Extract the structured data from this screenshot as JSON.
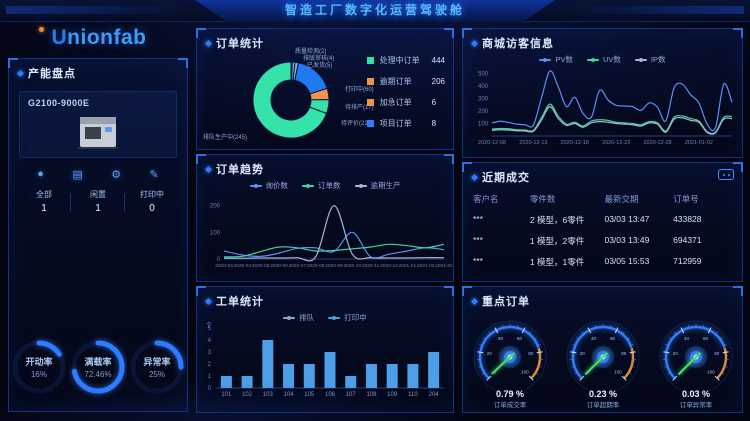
{
  "header": {
    "title": "智造工厂数字化运营驾驶舱"
  },
  "logo": {
    "text_u": "U",
    "text_rest": "nionfab"
  },
  "sidebar": {
    "panel_title": "产能盘点",
    "machine": {
      "name": "G2100-9000E"
    },
    "icons": [
      {
        "name": "status-dot-icon",
        "glyph": "●"
      },
      {
        "name": "printer-icon",
        "glyph": "▤"
      },
      {
        "name": "gear-icon",
        "glyph": "⚙"
      },
      {
        "name": "pen-icon",
        "glyph": "✎"
      }
    ],
    "stats": [
      {
        "label": "全部",
        "value": "1"
      },
      {
        "label": "闲置",
        "value": "1"
      },
      {
        "label": "打印中",
        "value": "0"
      }
    ],
    "ring_gauges": [
      {
        "label": "开动率",
        "value": "16%",
        "pct": 16
      },
      {
        "label": "满载率",
        "value": "72.46%",
        "pct": 72
      },
      {
        "label": "异常率",
        "value": "25%",
        "pct": 25
      }
    ]
  },
  "panels": {
    "orders": {
      "title": "订单统计",
      "legend": [
        {
          "label": "处理中订单",
          "value": "444",
          "color": "#35e2a8"
        },
        {
          "label": "逾期订单",
          "value": "206",
          "color": "#f0944d"
        },
        {
          "label": "加急订单",
          "value": "6",
          "color": "#f0944d"
        },
        {
          "label": "项目订单",
          "value": "8",
          "color": "#2f7bff"
        }
      ]
    },
    "trend": {
      "title": "订单趋势"
    },
    "workorders": {
      "title": "工单统计"
    },
    "visitors": {
      "title": "商城访客信息"
    },
    "deals": {
      "title": "近期成交",
      "headers": [
        "客户名",
        "零件数",
        "最新交期",
        "订单号"
      ],
      "rows": [
        [
          "***",
          "2 模型，6零件",
          "03/03 13:47",
          "433828"
        ],
        [
          "***",
          "1 模型，2零件",
          "03/03 13:49",
          "694371"
        ],
        [
          "***",
          "1 模型，1零件",
          "03/05 15:53",
          "712959"
        ]
      ]
    },
    "key_orders": {
      "title": "重点订单",
      "gauges": [
        {
          "value": "0.79 %",
          "label": "订单成交率",
          "pct": 0.79
        },
        {
          "value": "0.23 %",
          "label": "订单超期率",
          "pct": 0.23
        },
        {
          "value": "0.03 %",
          "label": "订单异常率",
          "pct": 0.03
        }
      ]
    }
  },
  "chart_data": [
    {
      "type": "pie",
      "title": "订单统计",
      "slices": [
        {
          "label": "质量检测(2)",
          "value": 2,
          "color": "#e05a4e"
        },
        {
          "label": "排版审核(4)",
          "value": 4,
          "color": "#49c7e8"
        },
        {
          "label": "已发货(5)",
          "value": 5,
          "color": "#9aa7c7"
        },
        {
          "label": "打印中(60)",
          "value": 60,
          "color": "#1f7af0"
        },
        {
          "label": "待排产(17)",
          "value": 17,
          "color": "#f0944d"
        },
        {
          "label": "待评价(21)",
          "value": 21,
          "color": "#35e2a8"
        },
        {
          "label": "排队生产中(245)",
          "value": 245,
          "color": "#35e2a8"
        }
      ],
      "legend_position": "right"
    },
    {
      "type": "line",
      "title": "订单趋势",
      "x": [
        "2020-03",
        "2020-04",
        "2020-05",
        "2020-06",
        "2020-07",
        "2020-08",
        "2020-09",
        "2020-10",
        "2020-11",
        "2020-12",
        "2021-01",
        "2021-02",
        "2021-03"
      ],
      "series": [
        {
          "name": "询价数",
          "color": "#5b8ff9",
          "values": [
            30,
            15,
            10,
            22,
            40,
            42,
            28,
            100,
            8,
            18,
            30,
            42,
            35
          ]
        },
        {
          "name": "订单数",
          "color": "#3bd6a3",
          "values": [
            8,
            10,
            28,
            45,
            42,
            30,
            32,
            38,
            45,
            55,
            50,
            42,
            55
          ]
        },
        {
          "name": "逾期生产",
          "color": "#aab4d4",
          "values": [
            3,
            3,
            4,
            4,
            5,
            8,
            200,
            18,
            5,
            4,
            4,
            5,
            5
          ]
        }
      ],
      "ylim": [
        0,
        240
      ],
      "yticks": [
        0,
        100,
        200
      ],
      "grid": false,
      "legend_position": "top"
    },
    {
      "type": "bar",
      "title": "工单统计",
      "categories": [
        "101",
        "102",
        "103",
        "104",
        "105",
        "106",
        "107",
        "108",
        "109",
        "110",
        "204"
      ],
      "series": [
        {
          "name": "排队",
          "color": "#8fa8c8",
          "values": [
            0,
            0,
            0,
            0,
            0,
            0,
            0,
            0,
            0,
            0,
            0
          ]
        },
        {
          "name": "打印中",
          "color": "#4d9fe8",
          "values": [
            1,
            1,
            4,
            2,
            2,
            3,
            1,
            2,
            2,
            2,
            3
          ]
        }
      ],
      "ylabel": "个",
      "ylim": [
        0,
        5
      ],
      "yticks": [
        0,
        1,
        2,
        3,
        4,
        5
      ],
      "grid": false,
      "legend_position": "top"
    },
    {
      "type": "line",
      "title": "商城访客信息",
      "x_n": 30,
      "xticks": [
        {
          "label": "2020-12-08",
          "i": 0
        },
        {
          "label": "2020-12-13",
          "i": 5
        },
        {
          "label": "2020-12-18",
          "i": 10
        },
        {
          "label": "2020-12-23",
          "i": 15
        },
        {
          "label": "2020-12-28",
          "i": 20
        },
        {
          "label": "2021-01-02",
          "i": 25
        }
      ],
      "series": [
        {
          "name": "PV数",
          "color": "#5b8ff9",
          "values": [
            105,
            118,
            108,
            95,
            90,
            88,
            310,
            520,
            395,
            235,
            310,
            180,
            150,
            365,
            290,
            245,
            240,
            235,
            205,
            265,
            230,
            120,
            385,
            415,
            330,
            265,
            95,
            65,
            415,
            270
          ]
        },
        {
          "name": "UV数",
          "color": "#3bd6a3",
          "values": [
            55,
            60,
            58,
            50,
            48,
            45,
            150,
            255,
            160,
            95,
            110,
            80,
            120,
            130,
            125,
            110,
            105,
            100,
            90,
            115,
            105,
            40,
            150,
            160,
            140,
            120,
            35,
            30,
            150,
            155
          ]
        },
        {
          "name": "IP数",
          "color": "#aab4d4",
          "values": [
            45,
            50,
            48,
            42,
            40,
            38,
            130,
            235,
            140,
            85,
            100,
            70,
            105,
            115,
            110,
            100,
            95,
            90,
            80,
            105,
            95,
            30,
            135,
            145,
            125,
            110,
            28,
            25,
            135,
            140
          ]
        }
      ],
      "ylim": [
        0,
        560
      ],
      "yticks": [
        100,
        200,
        300,
        400,
        500
      ],
      "grid": false,
      "legend_position": "top"
    }
  ]
}
